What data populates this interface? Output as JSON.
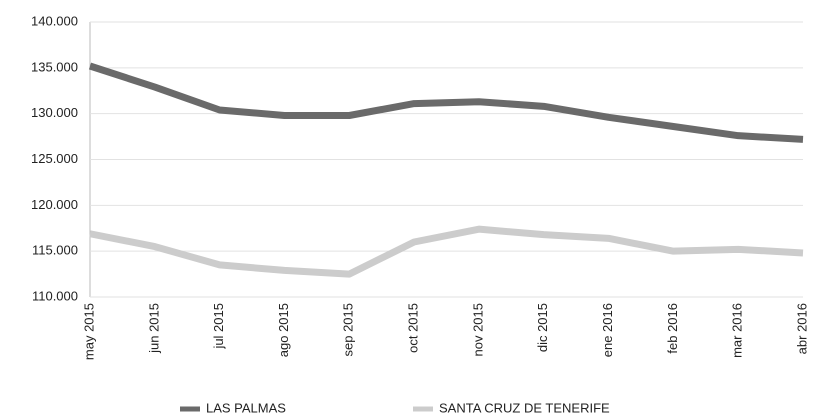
{
  "chart_data": {
    "type": "line",
    "categories": [
      "may 2015",
      "jun 2015",
      "jul 2015",
      "ago 2015",
      "sep 2015",
      "oct 2015",
      "nov 2015",
      "dic 2015",
      "ene 2016",
      "feb 2016",
      "mar 2016",
      "abr 2016"
    ],
    "series": [
      {
        "name": "LAS PALMAS",
        "color": "#6a6a6a",
        "values": [
          135200,
          132900,
          130400,
          129800,
          129800,
          131100,
          131300,
          130800,
          129600,
          128600,
          127600,
          127200
        ]
      },
      {
        "name": "SANTA CRUZ DE TENERIFE",
        "color": "#cccccc",
        "values": [
          116900,
          115500,
          113500,
          112900,
          112500,
          116000,
          117400,
          116800,
          116400,
          115000,
          115200,
          114800
        ]
      }
    ],
    "ylim": [
      110000,
      140000
    ],
    "yticks": [
      {
        "value": 110000,
        "label": "110.000"
      },
      {
        "value": 115000,
        "label": "115.000"
      },
      {
        "value": 120000,
        "label": "120.000"
      },
      {
        "value": 125000,
        "label": "125.000"
      },
      {
        "value": 130000,
        "label": "130.000"
      },
      {
        "value": 135000,
        "label": "135.000"
      },
      {
        "value": 140000,
        "label": "140.000"
      }
    ],
    "grid": true
  }
}
